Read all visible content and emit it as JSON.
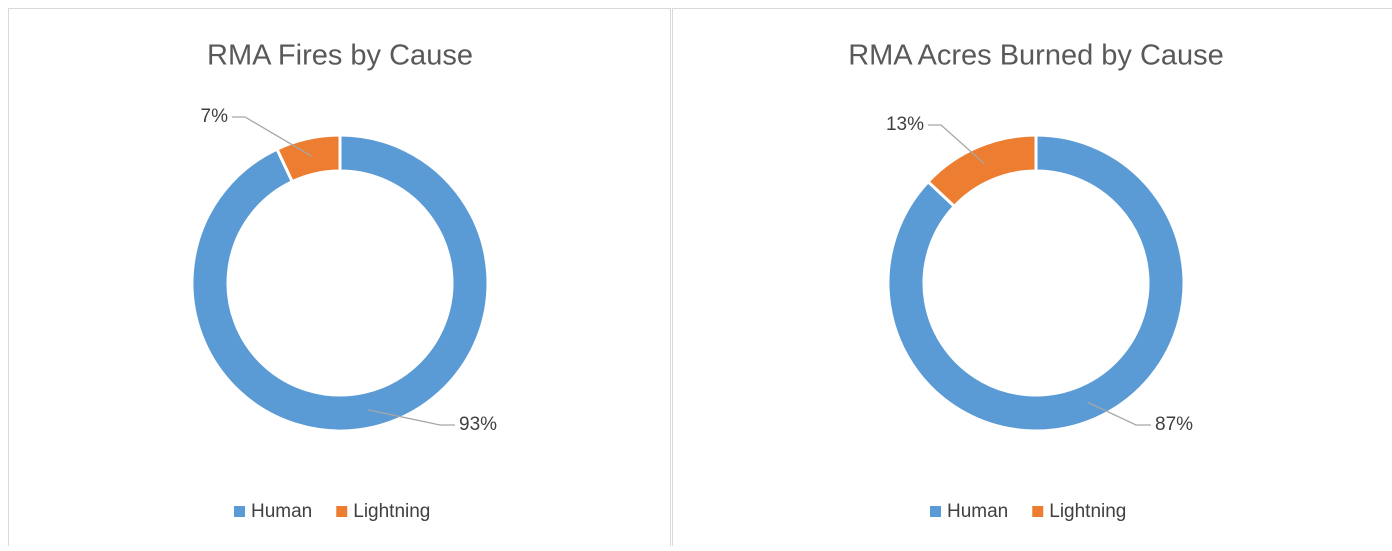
{
  "chart_data": [
    {
      "type": "donut",
      "title": "RMA Fires by Cause",
      "categories": [
        "Human",
        "Lightning"
      ],
      "values": [
        93,
        7
      ],
      "value_labels": [
        "93%",
        "7%"
      ],
      "colors": [
        "#5b9bd5",
        "#ed7d31"
      ],
      "legend": "bottom"
    },
    {
      "type": "donut",
      "title": "RMA Acres Burned by Cause",
      "categories": [
        "Human",
        "Lightning"
      ],
      "values": [
        87,
        13
      ],
      "value_labels": [
        "87%",
        "13%"
      ],
      "colors": [
        "#5b9bd5",
        "#ed7d31"
      ],
      "legend": "bottom"
    }
  ]
}
